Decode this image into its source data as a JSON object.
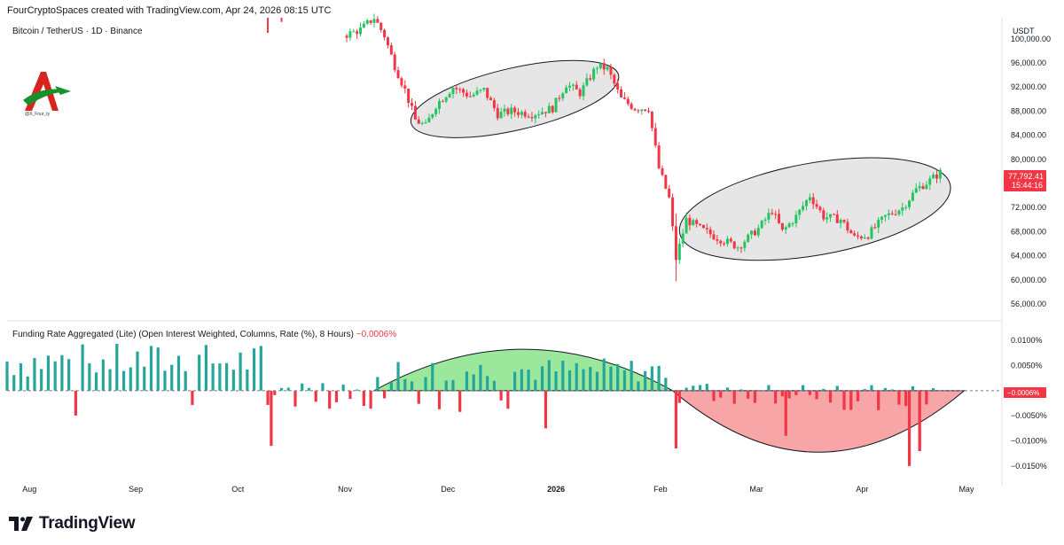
{
  "header": {
    "attribution": "FourCryptoSpaces created with TradingView.com, Apr 24, 2026 08:15 UTC",
    "symbol": "Bitcoin / TetherUS · 1D · Binance",
    "currency": "USDT"
  },
  "logo": {
    "caption": "@X_Four_ty",
    "mark": "A"
  },
  "price_label": {
    "value": "77,792.41",
    "countdown": "15:44:16",
    "color": "#f23645"
  },
  "indicator": {
    "title": "Funding Rate Aggregated (Lite) (Open Interest Weighted, Columns, Rate (%), 8 Hours)",
    "current_value": "−0.0006%",
    "badge": "−0.0006%"
  },
  "brand": {
    "name": "TradingView",
    "icon": "tradingview-logo-icon"
  },
  "colors": {
    "up": "#22c55e",
    "down": "#f23645",
    "funding_pos": "#26a69a",
    "funding_neg": "#f23645",
    "ellipse_fill": "#e6e6e6",
    "green_area": "#9be79b",
    "red_area": "#f8a5a8"
  },
  "chart_data": [
    {
      "type": "candlestick",
      "title": "Bitcoin / TetherUS · 1D · Binance",
      "y_unit": "USDT",
      "ylim": [
        53500,
        103500
      ],
      "y_ticks": [
        "100,000.00",
        "96,000.00",
        "92,000.00",
        "88,000.00",
        "84,000.00",
        "80,000.00",
        "72,000.00",
        "68,000.00",
        "64,000.00",
        "60,000.00",
        "56,000.00"
      ],
      "grid": false,
      "x_ticks": [
        "Aug",
        "Sep",
        "Oct",
        "Nov",
        "Dec",
        "2026",
        "Feb",
        "Mar",
        "Apr",
        "May"
      ],
      "x_ticks_bold": [
        "2026"
      ],
      "x_range": [
        "2025-07-26",
        "2026-05-12"
      ],
      "price_path": [
        [
          "2025-11-01",
          100500
        ],
        [
          "2025-11-06",
          101500
        ],
        [
          "2025-11-10",
          103500
        ],
        [
          "2025-11-13",
          100500
        ],
        [
          "2025-11-16",
          95500
        ],
        [
          "2025-11-19",
          91500
        ],
        [
          "2025-11-22",
          86500
        ],
        [
          "2025-11-25",
          85500
        ],
        [
          "2025-11-28",
          89000
        ],
        [
          "2025-12-03",
          92000
        ],
        [
          "2025-12-08",
          90500
        ],
        [
          "2025-12-12",
          91500
        ],
        [
          "2025-12-16",
          87500
        ],
        [
          "2025-12-20",
          88000
        ],
        [
          "2025-12-26",
          87500
        ],
        [
          "2026-01-01",
          88500
        ],
        [
          "2026-01-05",
          92500
        ],
        [
          "2026-01-09",
          91000
        ],
        [
          "2026-01-14",
          95500
        ],
        [
          "2026-01-17",
          95000
        ],
        [
          "2026-01-21",
          90000
        ],
        [
          "2026-01-25",
          88500
        ],
        [
          "2026-01-29",
          88500
        ],
        [
          "2026-02-01",
          78500
        ],
        [
          "2026-02-04",
          73500
        ],
        [
          "2026-02-06",
          63500
        ],
        [
          "2026-02-09",
          70000
        ],
        [
          "2026-02-13",
          68500
        ],
        [
          "2026-02-18",
          67000
        ],
        [
          "2026-02-24",
          65500
        ],
        [
          "2026-03-02",
          68500
        ],
        [
          "2026-03-06",
          71500
        ],
        [
          "2026-03-09",
          68000
        ],
        [
          "2026-03-13",
          70500
        ],
        [
          "2026-03-17",
          74000
        ],
        [
          "2026-03-21",
          70500
        ],
        [
          "2026-03-26",
          70000
        ],
        [
          "2026-03-30",
          67000
        ],
        [
          "2026-04-03",
          67500
        ],
        [
          "2026-04-08",
          70500
        ],
        [
          "2026-04-13",
          72000
        ],
        [
          "2026-04-17",
          75000
        ],
        [
          "2026-04-21",
          76500
        ],
        [
          "2026-04-24",
          77792.41
        ]
      ],
      "annotations": [
        "consolidation ellipse Nov–Jan",
        "consolidation ellipse Feb–Apr"
      ],
      "last_price": 77792.41
    },
    {
      "type": "bar",
      "title": "Funding Rate Aggregated (Lite) (Open Interest Weighted, Columns, Rate (%), 8 Hours)",
      "y_unit": "%",
      "ylim": [
        -0.0175,
        0.0125
      ],
      "y_ticks": [
        "0.0100%",
        "0.0050%",
        "0.0000%",
        "−0.0050%",
        "−0.0100%",
        "−0.0150%"
      ],
      "series_segments": [
        {
          "from": "2025-07-26",
          "to": "2025-10-10",
          "typical": 0.0065
        },
        {
          "from": "2025-10-10",
          "to": "2025-11-10",
          "typical": -0.002
        },
        {
          "from": "2025-11-10",
          "to": "2026-02-05",
          "typical": 0.0045
        },
        {
          "from": "2026-02-05",
          "to": "2026-04-24",
          "typical": -0.002
        }
      ],
      "notable_values": [
        [
          "2025-10-11",
          -0.011
        ],
        [
          "2025-12-30",
          -0.0075
        ],
        [
          "2026-02-06",
          -0.0115
        ],
        [
          "2026-03-10",
          -0.009
        ],
        [
          "2026-04-15",
          -0.015
        ],
        [
          "2026-04-18",
          -0.012
        ]
      ],
      "current_value": -0.0006
    }
  ]
}
